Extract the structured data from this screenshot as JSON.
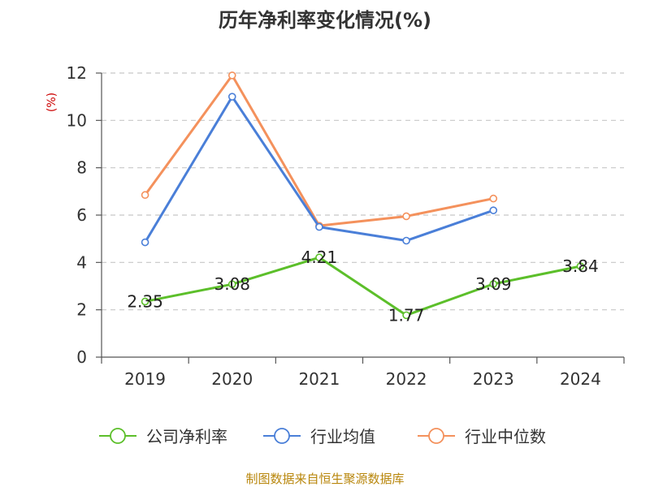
{
  "chart_data": {
    "type": "line",
    "title": "历年净利率变化情况(%)",
    "ylabel": "(%)",
    "xlabel": "",
    "categories": [
      "2019",
      "2020",
      "2021",
      "2022",
      "2023",
      "2024"
    ],
    "ylim": [
      0,
      12
    ],
    "yticks": [
      0,
      2,
      4,
      6,
      8,
      10,
      12
    ],
    "grid": true,
    "legend_position": "bottom",
    "series": [
      {
        "name": "公司净利率",
        "color": "#5cbf2a",
        "values": [
          2.35,
          3.08,
          4.21,
          1.77,
          3.09,
          3.84
        ],
        "labels": [
          "2.35",
          "3.08",
          "4.21",
          "1.77",
          "3.09",
          "3.84"
        ]
      },
      {
        "name": "行业均值",
        "color": "#4a7fd8",
        "values": [
          4.85,
          11.0,
          5.5,
          4.92,
          6.2,
          null
        ]
      },
      {
        "name": "行业中位数",
        "color": "#f4915c",
        "values": [
          6.85,
          11.9,
          5.55,
          5.95,
          6.7,
          null
        ]
      }
    ]
  },
  "source": "制图数据来自恒生聚源数据库"
}
